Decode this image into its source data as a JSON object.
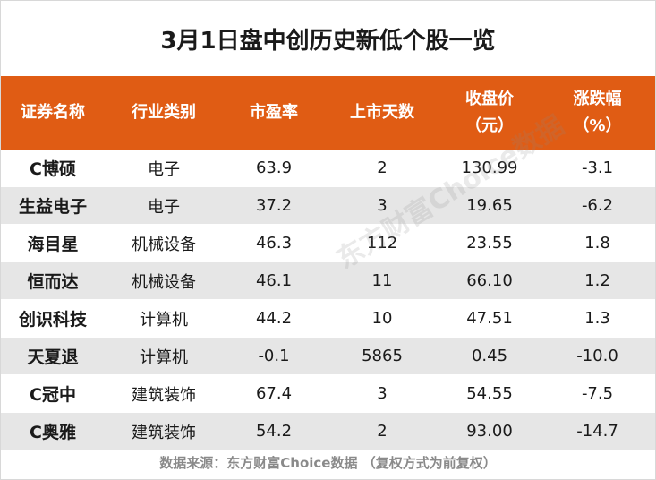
{
  "title": "3月1日盘中创历史新低个股一览",
  "headers": [
    {
      "line1": "证券名称",
      "line2": ""
    },
    {
      "line1": "行业类别",
      "line2": ""
    },
    {
      "line1": "市盈率",
      "line2": ""
    },
    {
      "line1": "上市天数",
      "line2": ""
    },
    {
      "line1": "收盘价",
      "line2": "（元）"
    },
    {
      "line1": "涨跌幅",
      "line2": "（%）"
    }
  ],
  "rows": [
    {
      "name": "C博硕",
      "industry": "电子",
      "pe": "63.9",
      "days": "2",
      "close": "130.99",
      "change": "-3.1"
    },
    {
      "name": "生益电子",
      "industry": "电子",
      "pe": "37.2",
      "days": "3",
      "close": "19.65",
      "change": "-6.2"
    },
    {
      "name": "海目星",
      "industry": "机械设备",
      "pe": "46.3",
      "days": "112",
      "close": "23.55",
      "change": "1.8"
    },
    {
      "name": "恒而达",
      "industry": "机械设备",
      "pe": "46.1",
      "days": "11",
      "close": "66.10",
      "change": "1.2"
    },
    {
      "name": "创识科技",
      "industry": "计算机",
      "pe": "44.2",
      "days": "10",
      "close": "47.51",
      "change": "1.3"
    },
    {
      "name": "天夏退",
      "industry": "计算机",
      "pe": "-0.1",
      "days": "5865",
      "close": "0.45",
      "change": "-10.0"
    },
    {
      "name": "C冠中",
      "industry": "建筑装饰",
      "pe": "67.4",
      "days": "3",
      "close": "54.55",
      "change": "-7.5"
    },
    {
      "name": "C奥雅",
      "industry": "建筑装饰",
      "pe": "54.2",
      "days": "2",
      "close": "93.00",
      "change": "-14.7"
    }
  ],
  "footer": "数据来源：东方财富Choice数据 （复权方式为前复权）",
  "watermark": "东方财富Choice数据",
  "colors": {
    "header_bg": "#e05c14",
    "stripe": "#e6e6e6"
  }
}
